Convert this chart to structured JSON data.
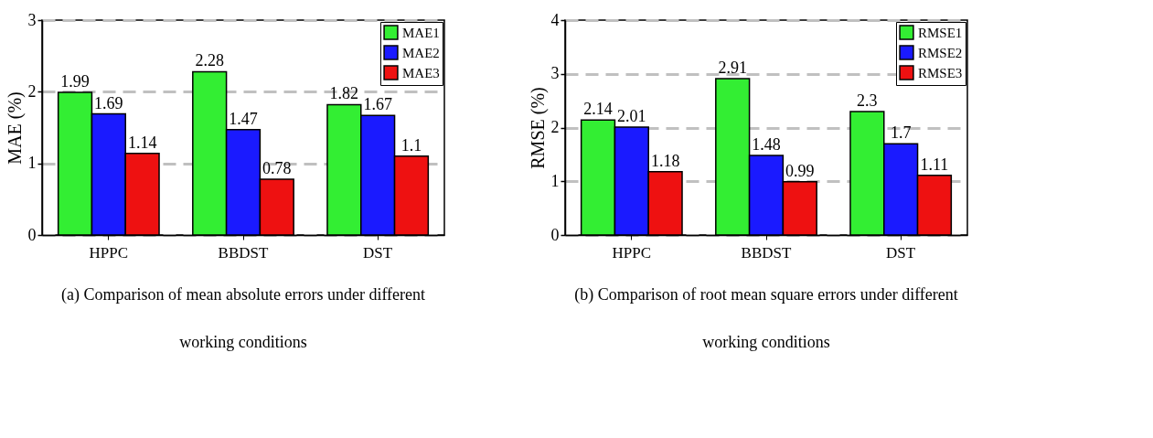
{
  "chart_data": [
    {
      "type": "bar",
      "categories": [
        "HPPC",
        "BBDST",
        "DST"
      ],
      "ylabel": "MAE (%)",
      "ylim": [
        0,
        3
      ],
      "yticks": [
        0,
        1,
        2,
        3
      ],
      "grid": "y",
      "legend": "top right",
      "data_labels": true,
      "series": [
        {
          "name": "MAE1",
          "color": "#33ee33",
          "values": [
            1.99,
            2.28,
            1.82
          ]
        },
        {
          "name": "MAE2",
          "color": "#1a1aff",
          "values": [
            1.69,
            1.47,
            1.67
          ]
        },
        {
          "name": "MAE3",
          "color": "#ee1111",
          "values": [
            1.14,
            0.78,
            1.1
          ]
        }
      ],
      "annotations": [
        "(a) Comparison of mean absolute errors under different working conditions"
      ]
    },
    {
      "type": "bar",
      "categories": [
        "HPPC",
        "BBDST",
        "DST"
      ],
      "ylabel": "RMSE (%)",
      "ylim": [
        0,
        4
      ],
      "yticks": [
        0,
        1,
        2,
        3,
        4
      ],
      "grid": "y",
      "legend": "top right",
      "data_labels": true,
      "series": [
        {
          "name": "RMSE1",
          "color": "#33ee33",
          "values": [
            2.14,
            2.91,
            2.3
          ]
        },
        {
          "name": "RMSE2",
          "color": "#1a1aff",
          "values": [
            2.01,
            1.48,
            1.7
          ]
        },
        {
          "name": "RMSE3",
          "color": "#ee1111",
          "values": [
            1.18,
            0.99,
            1.11
          ]
        }
      ],
      "annotations": [
        "(b) Comparison of root mean square errors under different working conditions"
      ]
    }
  ]
}
